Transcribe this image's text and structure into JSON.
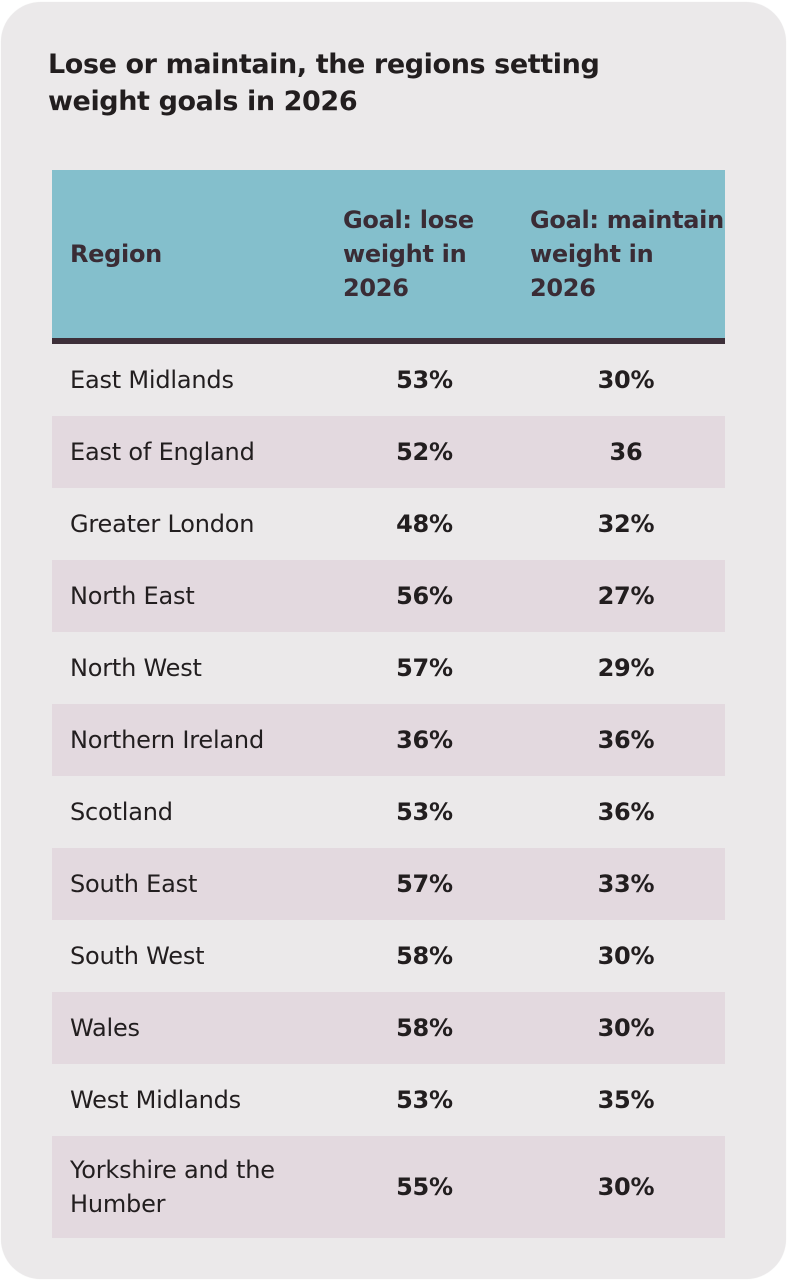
{
  "title": "Lose or maintain, the regions setting weight goals in 2026",
  "colors": {
    "card_background": "#ebe9ea",
    "header_background": "#84bfcc",
    "header_border": "#3d2f39",
    "header_text": "#3a2c35",
    "alt_row_background": "#e3d9df",
    "text": "#221e1f"
  },
  "table": {
    "headers": [
      "Region",
      "Goal: lose weight in 2026",
      "Goal: maintain weight in 2026"
    ],
    "rows": [
      {
        "region": "East Midlands",
        "lose": "53%",
        "maintain": "30%"
      },
      {
        "region": "East of England",
        "lose": "52%",
        "maintain": "36"
      },
      {
        "region": "Greater London",
        "lose": "48%",
        "maintain": "32%"
      },
      {
        "region": "North East",
        "lose": "56%",
        "maintain": "27%"
      },
      {
        "region": "North West",
        "lose": "57%",
        "maintain": "29%"
      },
      {
        "region": "Northern Ireland",
        "lose": "36%",
        "maintain": "36%"
      },
      {
        "region": "Scotland",
        "lose": "53%",
        "maintain": "36%"
      },
      {
        "region": "South East",
        "lose": "57%",
        "maintain": "33%"
      },
      {
        "region": "South West",
        "lose": "58%",
        "maintain": "30%"
      },
      {
        "region": "Wales",
        "lose": "58%",
        "maintain": "30%"
      },
      {
        "region": "West Midlands",
        "lose": "53%",
        "maintain": "35%"
      },
      {
        "region": "Yorkshire and the Humber",
        "lose": "55%",
        "maintain": "30%"
      }
    ]
  },
  "chart_data": {
    "type": "table",
    "title": "Lose or maintain, the regions setting weight goals in 2026",
    "columns": [
      "Region",
      "Goal: lose weight in 2026",
      "Goal: maintain weight in 2026"
    ],
    "categories": [
      "East Midlands",
      "East of England",
      "Greater London",
      "North East",
      "North West",
      "Northern Ireland",
      "Scotland",
      "South East",
      "South West",
      "Wales",
      "West Midlands",
      "Yorkshire and the Humber"
    ],
    "series": [
      {
        "name": "Goal: lose weight in 2026",
        "unit": "%",
        "values": [
          53,
          52,
          48,
          56,
          57,
          36,
          53,
          57,
          58,
          58,
          53,
          55
        ]
      },
      {
        "name": "Goal: maintain weight in 2026",
        "unit": "%",
        "values": [
          30,
          36,
          32,
          27,
          29,
          36,
          36,
          33,
          30,
          30,
          35,
          30
        ]
      }
    ],
    "notes": "East of England maintain value displayed as '36' without percent sign"
  }
}
